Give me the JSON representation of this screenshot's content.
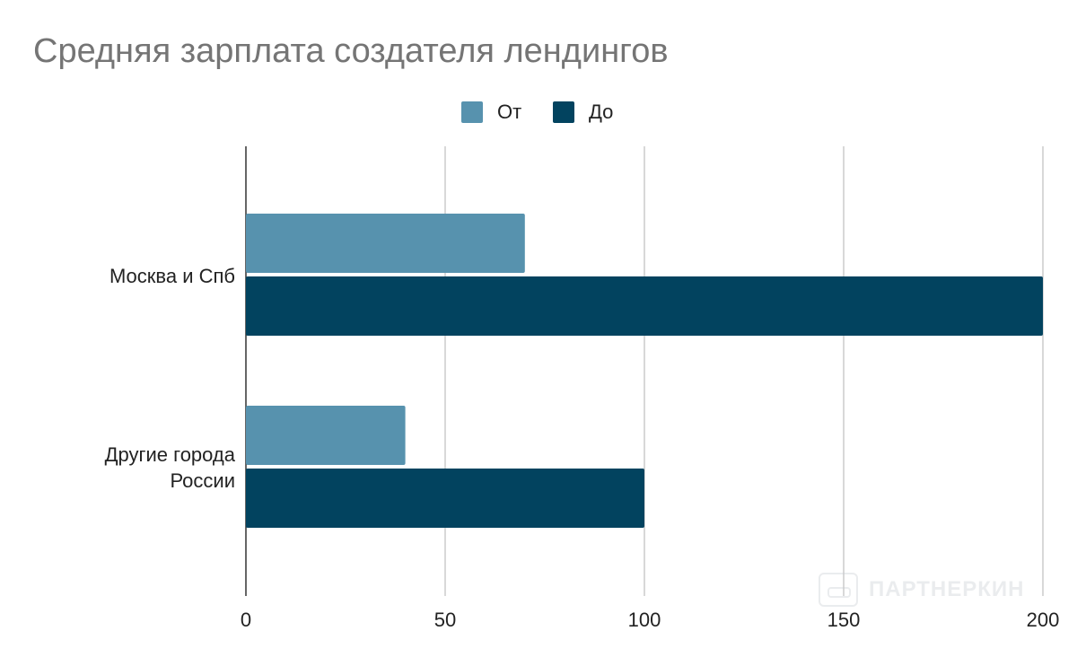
{
  "chart_data": {
    "type": "bar",
    "orientation": "horizontal",
    "title": "Средняя зарплата создателя лендингов",
    "categories": [
      "Москва и Спб",
      "Другие города России"
    ],
    "category_lines": [
      [
        "Москва и Спб"
      ],
      [
        "Другие города",
        "России"
      ]
    ],
    "series": [
      {
        "name": "От",
        "values": [
          70,
          40
        ],
        "color": "#5792ae"
      },
      {
        "name": "До",
        "values": [
          200,
          100
        ],
        "color": "#02435f"
      }
    ],
    "xlim": [
      0,
      200
    ],
    "xticks": [
      "0",
      "50",
      "100",
      "150",
      "200"
    ],
    "grid": true,
    "legend_position": "top-center"
  },
  "watermark": {
    "text": "ПАРТНЕРКИН"
  }
}
